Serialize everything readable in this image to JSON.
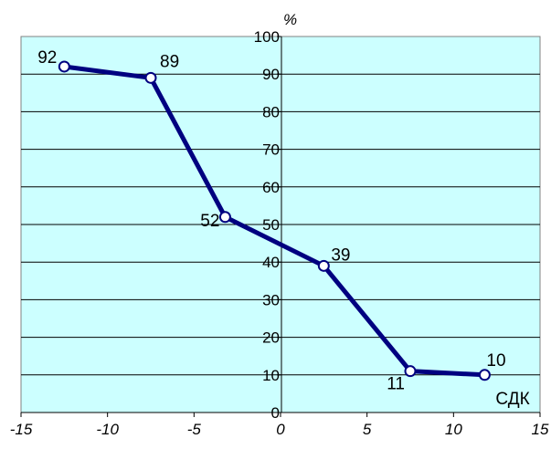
{
  "chart_data": {
    "type": "line",
    "title": "",
    "xlabel": "",
    "ylabel": "%",
    "xlim": [
      -15,
      15
    ],
    "ylim": [
      0,
      100
    ],
    "x_ticks": [
      "-15",
      "-10",
      "-5",
      "0",
      "5",
      "10",
      "15"
    ],
    "y_ticks": [
      "0",
      "10",
      "20",
      "30",
      "40",
      "50",
      "60",
      "70",
      "80",
      "90",
      "100"
    ],
    "grid": "horizontal",
    "plot_background": "#ccffff",
    "line_color": "#000080",
    "series": [
      {
        "x": [
          -12.5,
          -7.5,
          -3.2,
          2.5,
          7.5,
          11.8
        ],
        "y": [
          92,
          89,
          52,
          39,
          11,
          10
        ],
        "labels": [
          "92",
          "89",
          "52",
          "39",
          "11",
          "10"
        ]
      }
    ],
    "annotations": [
      {
        "text": "СДК",
        "x": 11.8,
        "y": 10
      }
    ]
  }
}
